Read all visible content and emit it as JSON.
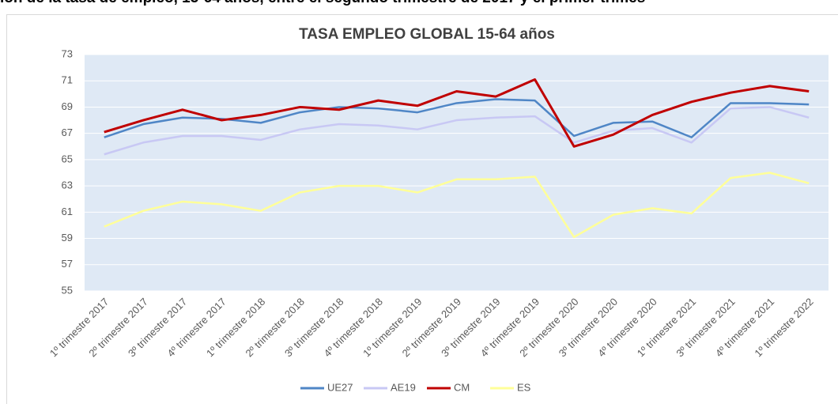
{
  "caption": "ión de la tasa de empleo, 15-64 años, entre el segundo trimestre de 2017 y el primer trimes",
  "chart_data": {
    "type": "line",
    "title": "TASA EMPLEO GLOBAL 15-64 años",
    "categories": [
      "1º trimestre 2017",
      "2º trimestre 2017",
      "3º trimestre 2017",
      "4º trimestre 2017",
      "1º trimestre 2018",
      "2º trimestre 2018",
      "3º trimestre 2018",
      "4º trimestre 2018",
      "1º trimestre 2019",
      "2º trimestre 2019",
      "3º trimestre 2019",
      "4º trimestre 2019",
      "2º trimestre 2020",
      "3º trimestre 2020",
      "4º trimestre 2020",
      "1º trimestre 2021",
      "3º trimestre 2021",
      "4º trimestre 2021",
      "1º trimestre 2022"
    ],
    "series": [
      {
        "name": "UE27",
        "color": "#4f86c6",
        "values": [
          66.7,
          67.7,
          68.2,
          68.1,
          67.8,
          68.6,
          69.0,
          68.9,
          68.6,
          69.3,
          69.6,
          69.5,
          66.8,
          67.8,
          67.9,
          66.7,
          69.3,
          69.3,
          69.2
        ]
      },
      {
        "name": "AE19",
        "color": "#c8c8f4",
        "values": [
          65.4,
          66.3,
          66.8,
          66.8,
          66.5,
          67.3,
          67.7,
          67.6,
          67.3,
          68.0,
          68.2,
          68.3,
          66.3,
          67.2,
          67.4,
          66.3,
          68.9,
          69.0,
          68.2
        ]
      },
      {
        "name": "CM",
        "color": "#c00000",
        "values": [
          67.1,
          68.0,
          68.8,
          68.0,
          68.4,
          69.0,
          68.8,
          69.5,
          69.1,
          70.2,
          69.8,
          71.1,
          66.0,
          66.9,
          68.4,
          69.4,
          70.1,
          70.6,
          70.2
        ]
      },
      {
        "name": "ES",
        "color": "#ffff99",
        "values": [
          59.9,
          61.1,
          61.8,
          61.6,
          61.1,
          62.5,
          63.0,
          63.0,
          62.5,
          63.5,
          63.5,
          63.7,
          59.1,
          60.8,
          61.3,
          60.9,
          63.6,
          64.0,
          63.2
        ]
      }
    ],
    "ylim": [
      55,
      73
    ],
    "yticks": [
      55,
      57,
      59,
      61,
      63,
      65,
      67,
      69,
      71,
      73
    ],
    "grid": true,
    "legend": "bottom"
  }
}
